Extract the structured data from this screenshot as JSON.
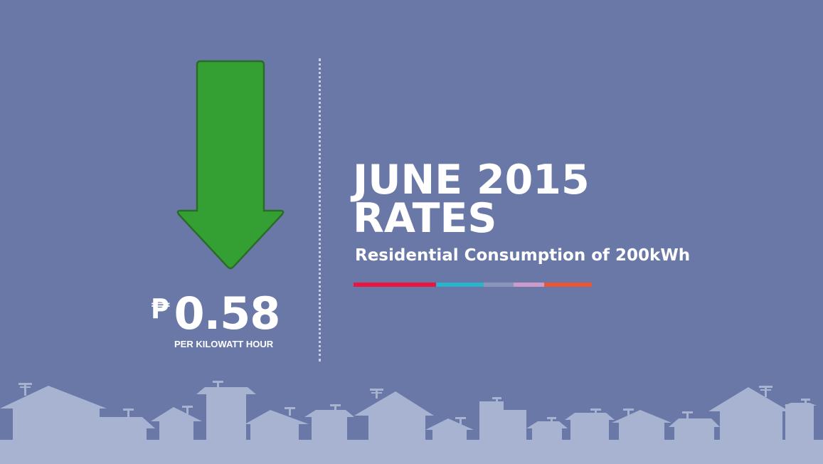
{
  "headline": {
    "line1": "JUNE 2015",
    "line2": "RATES"
  },
  "subtitle": "Residential Consumption of 200kWh",
  "rate": {
    "currency_symbol": "₱",
    "value": "0.58",
    "unit": "PER  KILOWATT HOUR",
    "direction": "down"
  },
  "colors": {
    "background": "#6a78a8",
    "arrow_fill": "#34a033",
    "arrow_stroke": "#2a6b27",
    "houses": "#a8b3d2",
    "colorbar": [
      "#e8173f",
      "#2ab2cc",
      "#8a93b8",
      "#cc9ac8",
      "#e8573a"
    ]
  },
  "icons": {
    "arrow": "down-arrow-icon",
    "skyline": "houses-skyline-icon"
  }
}
